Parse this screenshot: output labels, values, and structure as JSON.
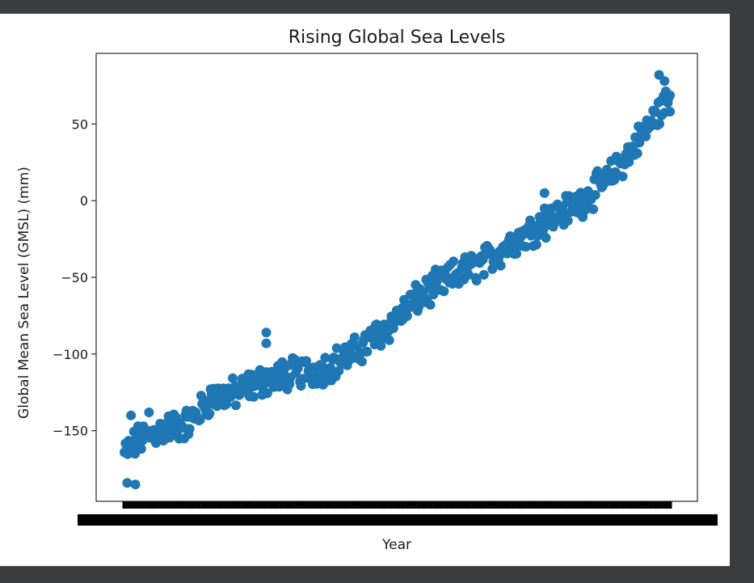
{
  "colors": {
    "window_background": "#3a3d40",
    "figure_background": "#ffffff",
    "marker": "#1f77b4",
    "axes": "#000000"
  },
  "chart_data": {
    "type": "scatter",
    "title": "Rising Global Sea Levels",
    "xlabel": "Year",
    "ylabel": "Global Mean Sea Level (GMSL) (mm)",
    "ylim": [
      -196,
      96
    ],
    "y_ticks": [
      -150,
      -100,
      -50,
      0,
      50
    ],
    "x_tick_labels_overlapping": true,
    "grid": false,
    "legend": "none",
    "series": [
      {
        "marker": "circle",
        "color": "#1f77b4",
        "trend_points": [
          {
            "x": 0.0,
            "y": -165
          },
          {
            "x": 0.03,
            "y": -155
          },
          {
            "x": 0.08,
            "y": -148
          },
          {
            "x": 0.12,
            "y": -145
          },
          {
            "x": 0.16,
            "y": -128
          },
          {
            "x": 0.2,
            "y": -126
          },
          {
            "x": 0.25,
            "y": -118
          },
          {
            "x": 0.3,
            "y": -113
          },
          {
            "x": 0.36,
            "y": -110
          },
          {
            "x": 0.42,
            "y": -100
          },
          {
            "x": 0.48,
            "y": -83
          },
          {
            "x": 0.54,
            "y": -63
          },
          {
            "x": 0.6,
            "y": -50
          },
          {
            "x": 0.66,
            "y": -40
          },
          {
            "x": 0.72,
            "y": -25
          },
          {
            "x": 0.78,
            "y": -12
          },
          {
            "x": 0.84,
            "y": 0
          },
          {
            "x": 0.89,
            "y": 15
          },
          {
            "x": 0.94,
            "y": 38
          },
          {
            "x": 1.0,
            "y": 68
          }
        ],
        "spikes": [
          {
            "x": 0.005,
            "y": -184
          },
          {
            "x": 0.02,
            "y": -185
          },
          {
            "x": 0.012,
            "y": -140
          },
          {
            "x": 0.045,
            "y": -138
          },
          {
            "x": 0.26,
            "y": -86
          },
          {
            "x": 0.26,
            "y": -93
          },
          {
            "x": 0.77,
            "y": 5
          },
          {
            "x": 0.77,
            "y": -5
          },
          {
            "x": 0.98,
            "y": 82
          },
          {
            "x": 0.99,
            "y": 78
          },
          {
            "x": 1.0,
            "y": 58
          }
        ]
      }
    ]
  }
}
